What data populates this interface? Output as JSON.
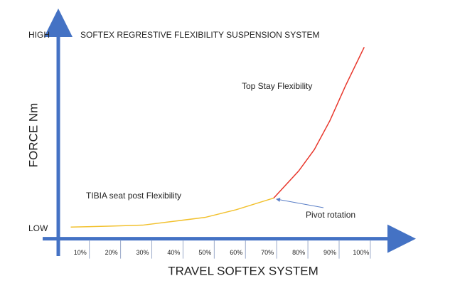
{
  "chart_data": {
    "type": "line",
    "title": "SOFTEX REGRESTIVE FLEXIBILITY SUSPENSION SYSTEM",
    "x_label": "TRAVEL SOFTEX SYSTEM",
    "y_label": "FORCE Nm",
    "annotations": [
      "Pivot rotation"
    ],
    "xlim": [
      -2,
      113
    ],
    "ylim": [
      -5,
      105
    ],
    "xticks": [
      {
        "value": 10,
        "label": "10%"
      },
      {
        "value": 20,
        "label": "20%"
      },
      {
        "value": 30,
        "label": "30%"
      },
      {
        "value": 40,
        "label": "40%"
      },
      {
        "value": 50,
        "label": "50%"
      },
      {
        "value": 60,
        "label": "60%"
      },
      {
        "value": 70,
        "label": "70%"
      },
      {
        "value": 80,
        "label": "80%"
      },
      {
        "value": 90,
        "label": "90%"
      },
      {
        "value": 100,
        "label": "100%"
      }
    ],
    "yticks": [
      {
        "value": 0,
        "label": "LOW"
      },
      {
        "value": 100,
        "label": "HIGH"
      }
    ],
    "axis_color": "#4472c4",
    "series": [
      {
        "name": "TIBIA seat post Flexibility",
        "color": "#f2c12e",
        "x": [
          7,
          20,
          30,
          40,
          50,
          60,
          72
        ],
        "values": [
          1,
          1.5,
          2,
          4,
          6,
          10,
          16
        ]
      },
      {
        "name": "Top Stay Flexibility",
        "color": "#e8372c",
        "x": [
          72,
          80,
          85,
          90,
          95,
          101
        ],
        "values": [
          16,
          30,
          41,
          56,
          74,
          94
        ]
      }
    ]
  }
}
